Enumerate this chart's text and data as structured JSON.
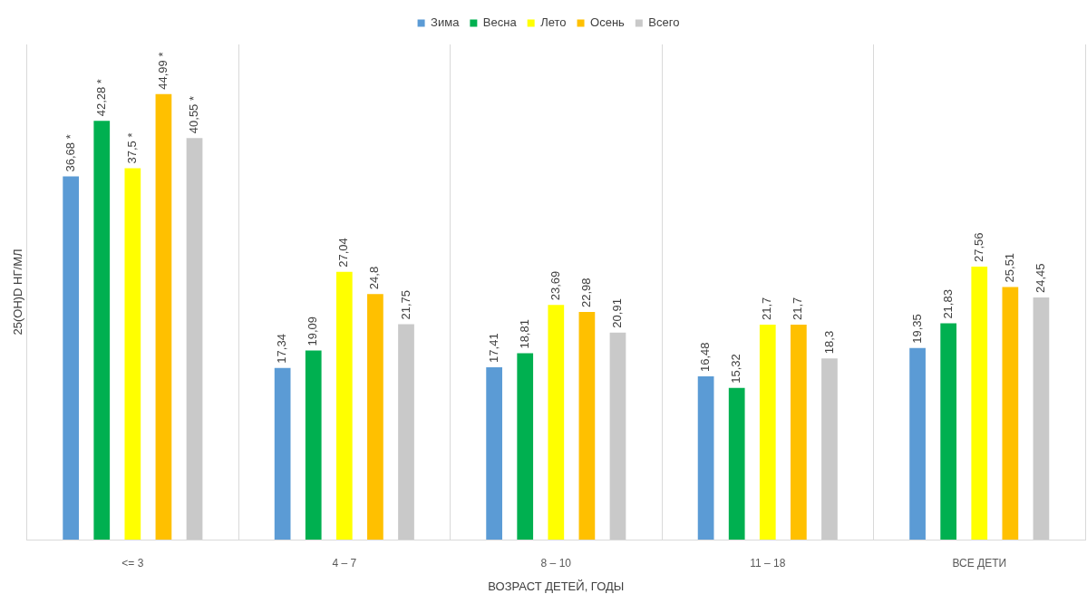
{
  "chart_data": {
    "type": "bar",
    "xlabel": "ВОЗРАСТ ДЕТЕЙ, ГОДЫ",
    "ylabel": "25(OH)D НГ/МЛ",
    "categories": [
      "<= 3",
      "4 – 7",
      "8 – 10",
      "11 – 18",
      "ВСЕ ДЕТИ"
    ],
    "series": [
      {
        "name": "Зима",
        "color": "#5b9bd5",
        "values": [
          36.68,
          17.34,
          17.41,
          16.48,
          19.35
        ],
        "value_labels": [
          "36,68 *",
          "17,34",
          "17,41",
          "16,48",
          "19,35"
        ]
      },
      {
        "name": "Весна",
        "color": "#00b050",
        "values": [
          42.28,
          19.09,
          18.81,
          15.32,
          21.83
        ],
        "value_labels": [
          "42,28 *",
          "19,09",
          "18,81",
          "15,32",
          "21,83"
        ]
      },
      {
        "name": "Лето",
        "color": "#ffff00",
        "values": [
          37.5,
          27.04,
          23.69,
          21.7,
          27.56
        ],
        "value_labels": [
          "37,5 *",
          "27,04",
          "23,69",
          "21,7",
          "27,56"
        ]
      },
      {
        "name": "Осень",
        "color": "#ffc000",
        "values": [
          44.99,
          24.8,
          22.98,
          21.7,
          25.51
        ],
        "value_labels": [
          "44,99 *",
          "24,8",
          "22,98",
          "21,7",
          "25,51"
        ]
      },
      {
        "name": "Всего",
        "color": "#c9c9c9",
        "values": [
          40.55,
          21.75,
          20.91,
          18.3,
          24.45
        ],
        "value_labels": [
          "40,55 *",
          "21,75",
          "20,91",
          "18,3",
          "24,45"
        ]
      }
    ],
    "ylim": [
      0,
      50
    ],
    "grid": "x",
    "legend": "top",
    "tick_labels": "x"
  }
}
